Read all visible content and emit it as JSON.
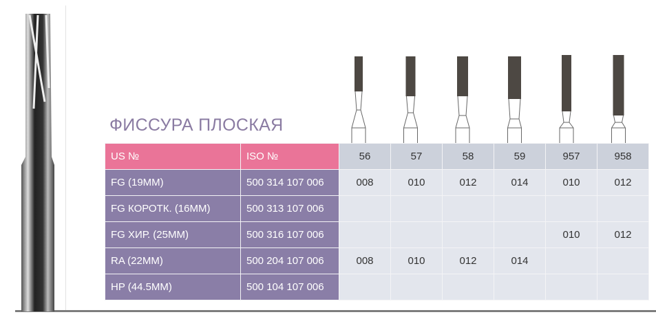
{
  "title": "ФИССУРА ПЛОСКАЯ",
  "table": {
    "headers": [
      "US №",
      "ISO №",
      "56",
      "57",
      "58",
      "59",
      "957",
      "958"
    ],
    "rows": [
      {
        "type": "FG (19MM)",
        "iso": "500 314 107 006",
        "sizes": [
          "008",
          "010",
          "012",
          "014",
          "010",
          "012"
        ]
      },
      {
        "type": "FG КОРОТК. (16MM)",
        "iso": "500 313 107 006",
        "sizes": [
          "",
          "",
          "",
          "",
          "",
          ""
        ]
      },
      {
        "type": "FG ХИР. (25MM)",
        "iso": "500 316 107 006",
        "sizes": [
          "",
          "",
          "",
          "",
          "010",
          "012"
        ]
      },
      {
        "type": "RA (22MM)",
        "iso": "500 204 107 006",
        "sizes": [
          "008",
          "010",
          "012",
          "014",
          "",
          ""
        ]
      },
      {
        "type": "HP (44.5MM)",
        "iso": "500 104 107 006",
        "sizes": [
          "",
          "",
          "",
          "",
          "",
          ""
        ]
      }
    ]
  },
  "colors": {
    "header_pink": "#ea7498",
    "row_purple": "#8a7ea7",
    "title": "#8a7ba2"
  }
}
